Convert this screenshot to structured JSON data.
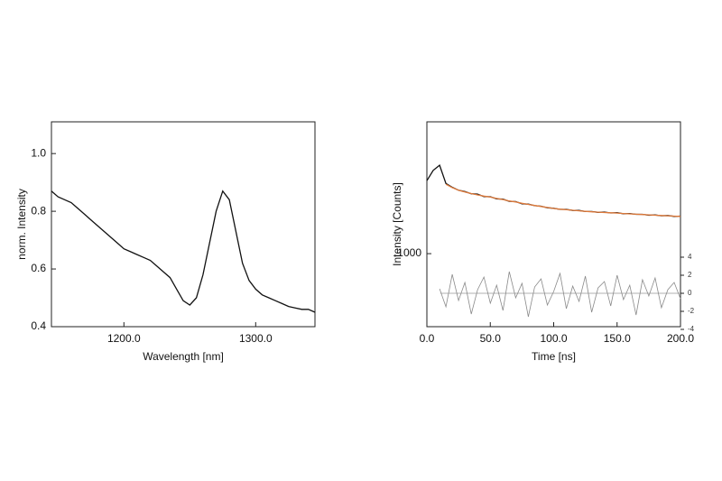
{
  "chart_data": [
    {
      "type": "line",
      "xlabel": "Wavelength [nm]",
      "ylabel": "norm. Intensity",
      "x": [
        1145,
        1150,
        1155,
        1160,
        1165,
        1170,
        1175,
        1180,
        1185,
        1190,
        1195,
        1200,
        1205,
        1210,
        1215,
        1220,
        1225,
        1230,
        1235,
        1240,
        1245,
        1250,
        1255,
        1260,
        1265,
        1270,
        1275,
        1280,
        1285,
        1290,
        1295,
        1300,
        1305,
        1310,
        1315,
        1320,
        1325,
        1330,
        1335,
        1340,
        1345
      ],
      "series": [
        {
          "color": "#111111",
          "values": [
            0.87,
            0.85,
            0.84,
            0.83,
            0.81,
            0.79,
            0.77,
            0.75,
            0.73,
            0.71,
            0.69,
            0.67,
            0.66,
            0.65,
            0.64,
            0.63,
            0.61,
            0.59,
            0.57,
            0.53,
            0.49,
            0.475,
            0.5,
            0.58,
            0.69,
            0.8,
            0.87,
            0.84,
            0.73,
            0.62,
            0.56,
            0.53,
            0.51,
            0.5,
            0.49,
            0.48,
            0.47,
            0.465,
            0.46,
            0.46,
            0.45
          ]
        }
      ],
      "xlim": [
        1145,
        1345
      ],
      "xticks": [
        {
          "value": 1200,
          "label": "1200.0"
        },
        {
          "value": 1300,
          "label": "1300.0"
        }
      ],
      "ylim": [
        0.4,
        1.11
      ],
      "yticks": [
        0.4,
        0.6,
        0.8,
        {
          "value": 1,
          "label": "1.0"
        }
      ],
      "log_y": false
    },
    {
      "type": "line",
      "xlabel": "Time [ns]",
      "ylabel": "Intensity [Counts]",
      "x": [
        0,
        5,
        10,
        15,
        20,
        25,
        30,
        35,
        40,
        45,
        50,
        55,
        60,
        65,
        70,
        75,
        80,
        85,
        90,
        95,
        100,
        105,
        110,
        115,
        120,
        125,
        130,
        135,
        140,
        145,
        150,
        155,
        160,
        165,
        170,
        175,
        180,
        185,
        190,
        195,
        200
      ],
      "series": [
        {
          "color": "#111111",
          "values": [
            2270,
            2550,
            2700,
            2200,
            2110,
            2040,
            2010,
            1960,
            1950,
            1900,
            1895,
            1850,
            1845,
            1800,
            1795,
            1750,
            1745,
            1715,
            1705,
            1675,
            1665,
            1645,
            1645,
            1625,
            1625,
            1605,
            1605,
            1590,
            1595,
            1580,
            1585,
            1565,
            1570,
            1555,
            1555,
            1540,
            1545,
            1530,
            1535,
            1520,
            1525
          ]
        },
        {
          "color": "#e07a3a",
          "values": [
            null,
            null,
            null,
            2180,
            2100,
            2040,
            2000,
            1965,
            1935,
            1910,
            1888,
            1860,
            1838,
            1808,
            1788,
            1760,
            1740,
            1718,
            1700,
            1680,
            1662,
            1648,
            1638,
            1628,
            1618,
            1608,
            1600,
            1594,
            1588,
            1583,
            1578,
            1570,
            1564,
            1558,
            1552,
            1546,
            1540,
            1535,
            1530,
            1525,
            1520
          ]
        },
        {
          "color": "#8a8a8a",
          "axis": "y2",
          "values": [
            null,
            null,
            0.5,
            -1.5,
            2.1,
            -0.8,
            1.2,
            -2.3,
            0.4,
            1.8,
            -1.1,
            0.9,
            -1.9,
            2.4,
            -0.5,
            1.1,
            -2.6,
            0.7,
            1.6,
            -1.3,
            0.2,
            2.2,
            -1.7,
            0.8,
            -0.9,
            1.9,
            -2.1,
            0.6,
            1.3,
            -1.4,
            2.0,
            -0.7,
            0.9,
            -2.4,
            1.5,
            -0.3,
            1.7,
            -1.6,
            0.4,
            1.2,
            -0.6
          ]
        }
      ],
      "xlim": [
        0,
        200
      ],
      "xticks": [
        {
          "value": 0,
          "label": "0.0"
        },
        {
          "value": 50,
          "label": "50.0"
        },
        {
          "value": 100,
          "label": "100.0"
        },
        {
          "value": 150,
          "label": "150.0"
        },
        {
          "value": 200,
          "label": "200.0"
        }
      ],
      "ylim": [
        440,
        4400
      ],
      "yticks": [
        1000
      ],
      "log_y": true,
      "y2lim": [
        -3.7,
        19
      ],
      "y2ticks": [
        -4,
        -2,
        0,
        2,
        4
      ]
    }
  ]
}
